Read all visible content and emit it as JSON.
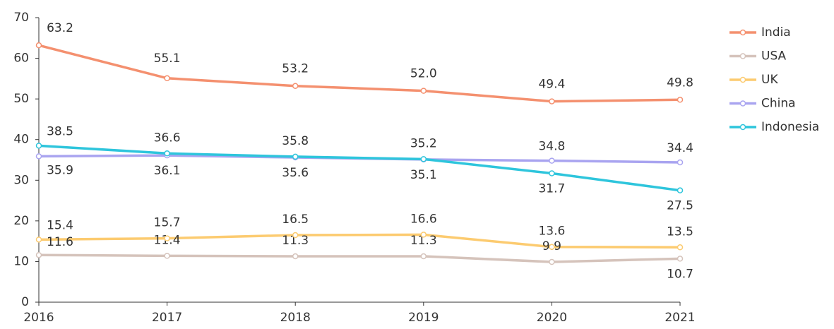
{
  "chart_data": {
    "type": "line",
    "categories": [
      "2016",
      "2017",
      "2018",
      "2019",
      "2020",
      "2021"
    ],
    "series": [
      {
        "name": "India",
        "color": "#f4906f",
        "values": [
          63.2,
          55.1,
          53.2,
          52.0,
          49.4,
          49.8
        ],
        "value_labels": [
          "63.2",
          "55.1",
          "53.2",
          "52.0",
          "49.4",
          "49.8"
        ]
      },
      {
        "name": "USA",
        "color": "#d5c3bb",
        "values": [
          11.6,
          11.4,
          11.3,
          11.3,
          9.9,
          10.7
        ],
        "value_labels": [
          "11.6",
          "11.4",
          "11.3",
          "11.3",
          "9.9",
          "10.7"
        ]
      },
      {
        "name": "UK",
        "color": "#fccb70",
        "values": [
          15.4,
          15.7,
          16.5,
          16.6,
          13.6,
          13.5
        ],
        "value_labels": [
          "15.4",
          "15.7",
          "16.5",
          "16.6",
          "13.6",
          "13.5"
        ]
      },
      {
        "name": "China",
        "color": "#a9a4f0",
        "values": [
          35.9,
          36.1,
          35.6,
          35.1,
          34.8,
          34.4
        ],
        "value_labels": [
          "35.9",
          "36.1",
          "35.6",
          "35.1",
          "34.8",
          "34.4"
        ]
      },
      {
        "name": "Indonesia",
        "color": "#2ec5dc",
        "values": [
          38.5,
          36.6,
          35.8,
          35.2,
          31.7,
          27.5
        ],
        "value_labels": [
          "38.5",
          "36.6",
          "35.8",
          "35.2",
          "31.7",
          "27.5"
        ]
      }
    ],
    "ylim": [
      0,
      70
    ],
    "yticks": [
      0,
      10,
      20,
      30,
      40,
      50,
      60,
      70
    ],
    "grid": false,
    "legend": "right"
  }
}
